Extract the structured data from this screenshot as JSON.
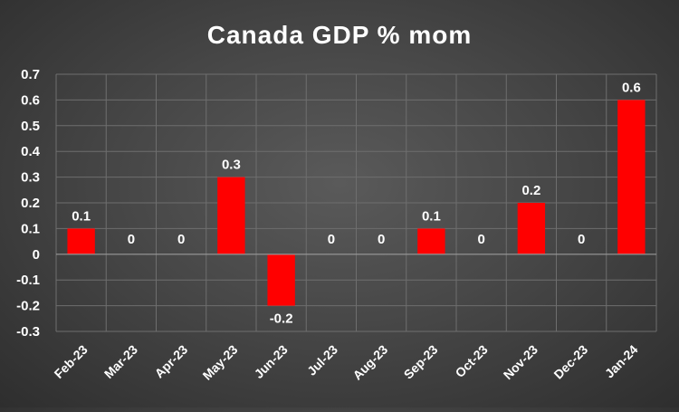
{
  "chart_data": {
    "type": "bar",
    "title": "Canada GDP % mom",
    "xlabel": "",
    "ylabel": "",
    "categories": [
      "Feb-23",
      "Mar-23",
      "Apr-23",
      "May-23",
      "Jun-23",
      "Jul-23",
      "Aug-23",
      "Sep-23",
      "Oct-23",
      "Nov-23",
      "Dec-23",
      "Jan-24"
    ],
    "values": [
      0.1,
      0,
      0,
      0.3,
      -0.2,
      0,
      0,
      0.1,
      0,
      0.2,
      0,
      0.6
    ],
    "data_labels": [
      "0.1",
      "0",
      "0",
      "0.3",
      "-0.2",
      "0",
      "0",
      "0.1",
      "0",
      "0.2",
      "0",
      "0.6"
    ],
    "ylim": [
      -0.3,
      0.7
    ],
    "yticks": [
      0.7,
      0.6,
      0.5,
      0.4,
      0.3,
      0.2,
      0.1,
      0,
      -0.1,
      -0.2,
      -0.3
    ],
    "ytick_labels": [
      "0.7",
      "0.6",
      "0.5",
      "0.4",
      "0.3",
      "0.2",
      "0.1",
      "0",
      "-0.1",
      "-0.2",
      "-0.3"
    ],
    "grid": true,
    "legend": "none",
    "colors": {
      "bar": "#ff0000",
      "grid": "#6e6e6e",
      "axis": "#9a9a9a",
      "text": "#ffffff"
    }
  }
}
